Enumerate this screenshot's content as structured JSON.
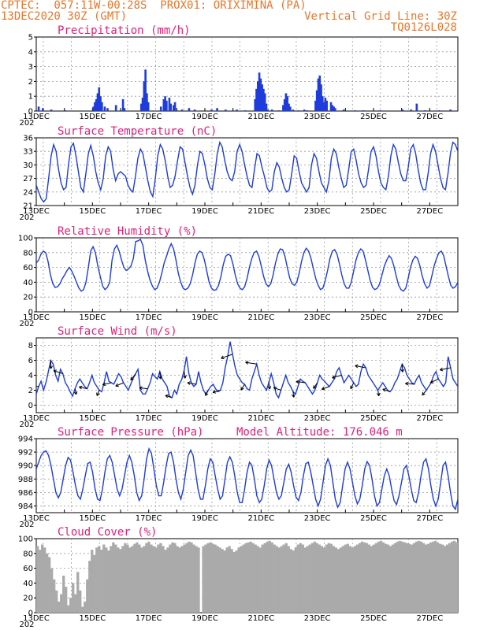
{
  "header": {
    "line1_left": "CPTEC:  057:11W-00:28S  PROX01: ORIXIMINA (PA)",
    "line2_left": "13DEC2020 30Z (GMT)",
    "line2_right": "Vertical Grid Line: 30Z",
    "line3_right": "TQ0126L028"
  },
  "colors": {
    "header": "#e8762a",
    "title": "#e0207a",
    "line": "#1e3cdc",
    "cloud": "#aaaaaa"
  },
  "x_axis": {
    "day_min": 13.0,
    "day_max": 28.0,
    "tick_days": [
      13,
      15,
      17,
      19,
      21,
      23,
      25,
      27
    ],
    "tick_labels": [
      "13DEC",
      "15DEC",
      "17DEC",
      "19DEC",
      "21DEC",
      "23DEC",
      "25DEC",
      "27DEC"
    ],
    "corner_label": "202"
  },
  "chart_data": [
    {
      "type": "bar",
      "title": "Precipitation (mm/h)",
      "ylim": [
        0,
        5
      ],
      "yticks": [
        0,
        1,
        2,
        3,
        4,
        5
      ],
      "events": [
        [
          13.05,
          0.3
        ],
        [
          13.2,
          0.2
        ],
        [
          13.5,
          0.1
        ],
        [
          14.0,
          0.05
        ],
        [
          15.0,
          0.3
        ],
        [
          15.05,
          0.6
        ],
        [
          15.1,
          0.8
        ],
        [
          15.15,
          1.2
        ],
        [
          15.2,
          1.6
        ],
        [
          15.25,
          1.0
        ],
        [
          15.3,
          0.6
        ],
        [
          15.4,
          0.3
        ],
        [
          15.5,
          0.2
        ],
        [
          15.8,
          0.4
        ],
        [
          16.05,
          0.8
        ],
        [
          16.1,
          0.2
        ],
        [
          16.7,
          0.5
        ],
        [
          16.75,
          0.9
        ],
        [
          16.8,
          2.0
        ],
        [
          16.85,
          2.8
        ],
        [
          16.9,
          1.2
        ],
        [
          16.95,
          0.6
        ],
        [
          17.4,
          0.3
        ],
        [
          17.5,
          0.8
        ],
        [
          17.55,
          1.0
        ],
        [
          17.6,
          0.7
        ],
        [
          17.7,
          0.9
        ],
        [
          17.75,
          0.5
        ],
        [
          17.85,
          0.4
        ],
        [
          17.9,
          0.6
        ],
        [
          18.15,
          0.1
        ],
        [
          18.4,
          0.2
        ],
        [
          18.6,
          0.1
        ],
        [
          19.2,
          0.1
        ],
        [
          19.4,
          0.2
        ],
        [
          19.7,
          0.1
        ],
        [
          20.1,
          0.1
        ],
        [
          20.4,
          0.05
        ],
        [
          20.75,
          0.8
        ],
        [
          20.8,
          1.5
        ],
        [
          20.85,
          2.0
        ],
        [
          20.9,
          2.6
        ],
        [
          20.95,
          2.2
        ],
        [
          21.0,
          1.8
        ],
        [
          21.05,
          1.5
        ],
        [
          21.1,
          1.2
        ],
        [
          21.15,
          0.5
        ],
        [
          21.2,
          0.1
        ],
        [
          21.35,
          0.1
        ],
        [
          21.6,
          0.05
        ],
        [
          21.75,
          0.4
        ],
        [
          21.8,
          0.8
        ],
        [
          21.85,
          1.2
        ],
        [
          21.9,
          1.0
        ],
        [
          21.95,
          0.5
        ],
        [
          22.0,
          0.3
        ],
        [
          22.1,
          0.1
        ],
        [
          22.3,
          0.05
        ],
        [
          22.5,
          0.1
        ],
        [
          22.6,
          0.05
        ],
        [
          22.9,
          0.7
        ],
        [
          22.95,
          1.4
        ],
        [
          23.0,
          2.2
        ],
        [
          23.05,
          2.4
        ],
        [
          23.1,
          1.8
        ],
        [
          23.15,
          1.0
        ],
        [
          23.2,
          0.6
        ],
        [
          23.25,
          0.9
        ],
        [
          23.3,
          0.7
        ],
        [
          23.45,
          0.6
        ],
        [
          23.5,
          0.4
        ],
        [
          23.55,
          0.3
        ],
        [
          23.6,
          0.2
        ],
        [
          23.9,
          0.1
        ],
        [
          24.3,
          0.05
        ],
        [
          24.6,
          0.05
        ],
        [
          25.2,
          0.05
        ],
        [
          26.0,
          0.1
        ],
        [
          26.3,
          0.1
        ],
        [
          26.5,
          0.5
        ],
        [
          26.8,
          0.05
        ],
        [
          27.3,
          0.05
        ],
        [
          27.7,
          0.1
        ]
      ]
    },
    {
      "type": "line",
      "title": "Surface Temperature (nC)",
      "ylim": [
        21,
        36
      ],
      "yticks": [
        21,
        24,
        27,
        30,
        33,
        36
      ],
      "values": [
        25.5,
        24.0,
        22.5,
        21.8,
        22.5,
        27.0,
        32.0,
        34.5,
        33.0,
        29.0,
        26.0,
        24.5,
        25.0,
        30.0,
        34.0,
        34.8,
        32.0,
        28.5,
        25.0,
        24.0,
        28.0,
        32.5,
        34.3,
        32.0,
        28.5,
        26.0,
        24.5,
        27.0,
        32.0,
        34.0,
        33.0,
        29.0,
        26.5,
        28.0,
        28.5,
        28.0,
        27.5,
        25.5,
        24.5,
        24.0,
        27.5,
        31.5,
        33.5,
        32.5,
        29.5,
        26.5,
        24.0,
        23.0,
        27.0,
        32.0,
        34.5,
        33.5,
        31.0,
        27.5,
        25.0,
        25.5,
        27.5,
        31.0,
        34.0,
        33.5,
        30.5,
        27.5,
        25.0,
        23.5,
        25.5,
        30.0,
        33.0,
        32.5,
        30.0,
        27.0,
        25.0,
        24.5,
        28.0,
        32.5,
        35.0,
        34.0,
        31.0,
        28.5,
        27.0,
        26.5,
        28.5,
        33.0,
        34.5,
        33.0,
        30.0,
        27.5,
        25.5,
        25.0,
        29.0,
        32.5,
        32.0,
        29.5,
        27.5,
        25.0,
        24.0,
        24.5,
        28.5,
        30.5,
        29.5,
        27.0,
        25.0,
        24.0,
        24.5,
        28.0,
        32.0,
        31.5,
        28.5,
        26.0,
        25.0,
        24.0,
        25.0,
        30.0,
        32.5,
        31.5,
        28.5,
        26.0,
        25.0,
        24.0,
        26.5,
        31.5,
        33.5,
        32.5,
        29.5,
        27.0,
        25.0,
        25.5,
        29.0,
        33.0,
        33.5,
        31.0,
        28.0,
        26.0,
        25.0,
        25.5,
        29.0,
        33.0,
        34.0,
        32.0,
        28.5,
        26.0,
        25.0,
        24.5,
        27.5,
        32.0,
        34.5,
        33.5,
        30.5,
        28.0,
        26.5,
        26.5,
        29.5,
        33.5,
        34.5,
        32.5,
        29.0,
        26.0,
        24.5,
        24.5,
        28.0,
        32.5,
        34.5,
        33.0,
        30.0,
        27.0,
        25.0,
        24.5,
        28.0,
        32.5,
        35.0,
        34.5,
        33.0
      ]
    },
    {
      "type": "line",
      "title": "Relative Humidity (%)",
      "ylim": [
        0,
        100
      ],
      "yticks": [
        0,
        20,
        40,
        60,
        80,
        100
      ],
      "values": [
        66,
        70,
        78,
        82,
        80,
        68,
        50,
        38,
        33,
        34,
        38,
        45,
        50,
        56,
        60,
        55,
        48,
        40,
        32,
        28,
        30,
        40,
        60,
        82,
        88,
        80,
        62,
        48,
        35,
        30,
        33,
        40,
        70,
        85,
        90,
        82,
        70,
        60,
        56,
        58,
        62,
        72,
        95,
        96,
        98,
        90,
        70,
        55,
        43,
        35,
        30,
        32,
        40,
        52,
        66,
        75,
        85,
        92,
        85,
        70,
        52,
        40,
        32,
        30,
        32,
        38,
        50,
        66,
        78,
        82,
        80,
        70,
        55,
        40,
        32,
        29,
        30,
        36,
        48,
        64,
        75,
        78,
        76,
        65,
        50,
        38,
        32,
        30,
        34,
        45,
        60,
        72,
        80,
        82,
        75,
        62,
        48,
        38,
        34,
        38,
        50,
        66,
        78,
        85,
        84,
        75,
        60,
        46,
        38,
        36,
        40,
        52,
        68,
        80,
        86,
        82,
        72,
        58,
        45,
        36,
        30,
        32,
        42,
        56,
        72,
        82,
        84,
        78,
        65,
        50,
        38,
        32,
        32,
        40,
        55,
        70,
        80,
        85,
        82,
        70,
        56,
        42,
        33,
        30,
        32,
        38,
        50,
        62,
        70,
        76,
        72,
        62,
        48,
        36,
        30,
        28,
        32,
        45,
        60,
        70,
        75,
        72,
        62,
        48,
        38,
        32,
        35,
        48,
        62,
        72,
        80,
        82,
        76,
        62,
        48,
        36,
        32,
        34,
        40
      ]
    },
    {
      "type": "line",
      "title": "Surface Wind (m/s)",
      "ylim": [
        -1,
        9
      ],
      "yticks": [
        0,
        2,
        4,
        6,
        8
      ],
      "values": [
        1.5,
        2.5,
        3.2,
        2.0,
        3.0,
        4.5,
        6.0,
        5.5,
        4.0,
        3.2,
        4.8,
        4.2,
        3.0,
        2.5,
        1.8,
        1.2,
        2.2,
        3.0,
        3.5,
        3.0,
        2.5,
        2.2,
        3.0,
        4.0,
        3.0,
        2.5,
        2.0,
        1.8,
        3.0,
        4.5,
        3.2,
        3.0,
        2.8,
        3.5,
        4.2,
        3.8,
        3.0,
        2.5,
        2.0,
        2.8,
        3.6,
        4.2,
        4.8,
        2.0,
        1.5,
        1.5,
        2.2,
        3.0,
        4.2,
        3.8,
        3.5,
        4.5,
        3.5,
        3.0,
        2.5,
        1.2,
        1.0,
        2.0,
        1.5,
        2.8,
        3.4,
        4.6,
        6.5,
        4.2,
        3.0,
        2.5,
        2.8,
        4.5,
        3.0,
        2.0,
        1.5,
        2.0,
        2.5,
        2.8,
        2.2,
        1.8,
        2.0,
        3.0,
        5.0,
        6.5,
        8.5,
        6.8,
        5.2,
        4.0,
        3.5,
        3.0,
        2.8,
        2.2,
        2.0,
        3.5,
        4.5,
        5.5,
        4.0,
        3.0,
        2.5,
        2.0,
        3.0,
        4.2,
        3.0,
        1.5,
        1.0,
        2.0,
        3.0,
        4.0,
        3.0,
        2.5,
        1.8,
        1.5,
        2.5,
        3.5,
        3.2,
        3.0,
        2.5,
        2.0,
        1.5,
        2.0,
        3.0,
        4.0,
        3.5,
        3.2,
        2.8,
        2.5,
        3.0,
        3.5,
        4.5,
        5.0,
        4.0,
        3.0,
        3.5,
        4.0,
        3.5,
        3.0,
        2.5,
        2.8,
        4.5,
        5.5,
        5.0,
        4.0,
        3.5,
        3.0,
        2.5,
        2.0,
        2.5,
        3.0,
        2.5,
        2.0,
        1.8,
        2.2,
        3.0,
        3.5,
        4.5,
        5.5,
        5.0,
        4.0,
        3.5,
        3.0,
        2.8,
        3.5,
        4.0,
        3.0,
        2.5,
        2.0,
        2.5,
        3.0,
        4.0,
        4.5,
        3.5,
        3.0,
        2.5,
        3.0,
        6.5,
        5.0,
        3.5,
        3.0,
        2.5
      ]
    },
    {
      "type": "line",
      "title": "Surface Pressure (hPa)",
      "annotation": "Model Altitude: 176.046 m",
      "ylim": [
        983,
        994
      ],
      "yticks": [
        984,
        986,
        988,
        990,
        992,
        994
      ],
      "values": [
        989.5,
        990.5,
        991.5,
        992.0,
        992.2,
        991.5,
        990.0,
        988.0,
        986.0,
        985.2,
        986.0,
        988.0,
        990.0,
        991.2,
        990.8,
        989.0,
        987.0,
        985.5,
        985.0,
        986.5,
        988.5,
        990.3,
        990.5,
        989.0,
        986.5,
        985.0,
        984.8,
        986.5,
        989.0,
        991.0,
        991.5,
        990.5,
        988.5,
        986.5,
        985.5,
        986.5,
        988.5,
        990.5,
        991.5,
        990.5,
        988.5,
        986.0,
        984.8,
        985.5,
        988.0,
        991.0,
        992.5,
        991.8,
        989.5,
        987.0,
        985.5,
        985.5,
        987.5,
        990.0,
        991.8,
        992.0,
        990.5,
        988.0,
        986.0,
        985.0,
        986.5,
        989.0,
        991.5,
        992.3,
        991.5,
        989.0,
        986.5,
        985.0,
        985.0,
        987.0,
        989.5,
        991.0,
        990.5,
        988.5,
        986.5,
        985.0,
        985.5,
        988.0,
        990.5,
        991.3,
        990.5,
        988.5,
        986.0,
        984.5,
        984.5,
        986.5,
        989.0,
        990.5,
        990.0,
        988.0,
        985.5,
        984.5,
        985.0,
        987.0,
        989.5,
        990.8,
        990.0,
        988.0,
        986.0,
        985.0,
        985.5,
        987.5,
        989.5,
        990.2,
        989.0,
        987.0,
        985.3,
        984.8,
        986.0,
        988.5,
        990.3,
        990.5,
        989.0,
        987.0,
        985.0,
        984.0,
        985.0,
        987.5,
        990.0,
        991.0,
        990.0,
        987.5,
        985.0,
        983.8,
        984.5,
        987.0,
        989.5,
        990.5,
        989.5,
        987.5,
        985.5,
        984.3,
        985.0,
        987.0,
        989.5,
        990.6,
        990.0,
        988.0,
        985.5,
        984.0,
        984.5,
        986.5,
        988.5,
        989.5,
        988.5,
        986.5,
        984.8,
        984.2,
        985.5,
        987.5,
        989.5,
        990.0,
        988.5,
        986.5,
        984.8,
        984.5,
        986.0,
        988.5,
        990.5,
        991.0,
        989.5,
        987.0,
        985.0,
        984.0,
        985.0,
        987.5,
        990.0,
        990.5,
        988.5,
        986.0,
        984.0,
        983.5,
        985.0
      ]
    },
    {
      "type": "bar",
      "title": "Cloud Cover (%)",
      "ylim": [
        0,
        100
      ],
      "yticks": [
        0,
        20,
        40,
        60,
        80,
        100
      ],
      "values": [
        90,
        85,
        92,
        88,
        80,
        75,
        60,
        45,
        30,
        15,
        25,
        50,
        35,
        10,
        20,
        40,
        25,
        55,
        30,
        8,
        15,
        45,
        70,
        85,
        78,
        88,
        90,
        85,
        92,
        88,
        84,
        90,
        95,
        92,
        88,
        86,
        90,
        94,
        92,
        88,
        90,
        93,
        95,
        92,
        88,
        90,
        94,
        96,
        92,
        90,
        88,
        92,
        94,
        90,
        85,
        88,
        92,
        95,
        94,
        90,
        88,
        90,
        92,
        94,
        96,
        95,
        92,
        90,
        88,
        0,
        90,
        92,
        94,
        95,
        93,
        92,
        90,
        88,
        86,
        84,
        88,
        90,
        86,
        82,
        84,
        88,
        90,
        92,
        94,
        95,
        96,
        94,
        92,
        90,
        88,
        92,
        94,
        96,
        97,
        95,
        92,
        90,
        88,
        90,
        92,
        94,
        90,
        86,
        84,
        88,
        92,
        94,
        92,
        88,
        90,
        92,
        94,
        96,
        94,
        92,
        90,
        88,
        92,
        94,
        93,
        90,
        88,
        86,
        88,
        90,
        92,
        93,
        90,
        88,
        90,
        92,
        94,
        96,
        95,
        94,
        92,
        90,
        92,
        94,
        96,
        97,
        95,
        93,
        92,
        90,
        92,
        94,
        96,
        97,
        96,
        95,
        94,
        93,
        92,
        94,
        96,
        97,
        96,
        94,
        92,
        93,
        95,
        96,
        97,
        95,
        93,
        92,
        90,
        92,
        94,
        96,
        97,
        95
      ]
    }
  ]
}
